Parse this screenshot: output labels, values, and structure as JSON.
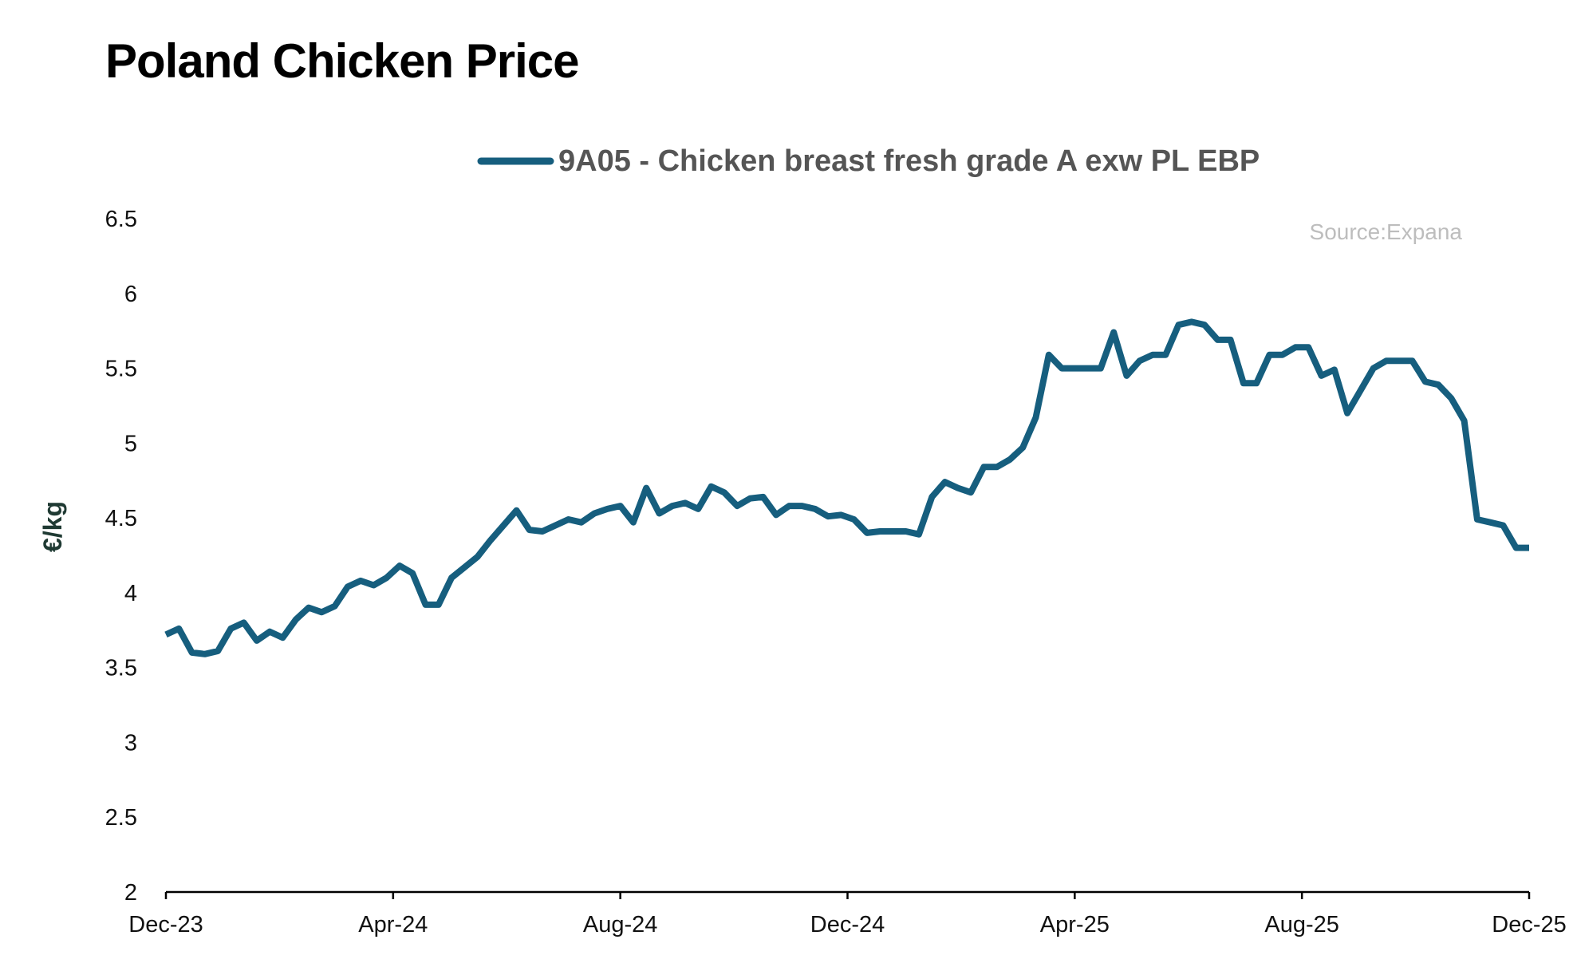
{
  "chart_data": {
    "type": "line",
    "title": "Poland Chicken Price",
    "source": "Source:Expana",
    "xlabel": "",
    "ylabel": "€/kg",
    "ylim": [
      2,
      6.5
    ],
    "yticks": [
      "2",
      "2.5",
      "3",
      "3.5",
      "4",
      "4.5",
      "5",
      "5.5",
      "6",
      "6.5"
    ],
    "x_ticks": [
      "Dec-23",
      "Apr-24",
      "Aug-24",
      "Dec-24",
      "Apr-25",
      "Aug-25",
      "Dec-25"
    ],
    "x_range": [
      0,
      24
    ],
    "color": "#165E7E",
    "legend_position": "top-center",
    "series": [
      {
        "name": "9A05 - Chicken breast fresh grade A exw PL EBP",
        "values": [
          3.72,
          3.76,
          3.6,
          3.59,
          3.61,
          3.76,
          3.8,
          3.68,
          3.74,
          3.7,
          3.82,
          3.9,
          3.87,
          3.91,
          4.04,
          4.08,
          4.05,
          4.1,
          4.18,
          4.13,
          3.92,
          3.92,
          4.1,
          4.17,
          4.24,
          4.35,
          4.45,
          4.55,
          4.42,
          4.41,
          4.45,
          4.49,
          4.47,
          4.53,
          4.56,
          4.58,
          4.47,
          4.7,
          4.53,
          4.58,
          4.6,
          4.56,
          4.71,
          4.67,
          4.58,
          4.63,
          4.64,
          4.52,
          4.58,
          4.58,
          4.56,
          4.51,
          4.52,
          4.49,
          4.4,
          4.41,
          4.41,
          4.41,
          4.39,
          4.64,
          4.74,
          4.7,
          4.67,
          4.84,
          4.84,
          4.89,
          4.97,
          5.17,
          5.59,
          5.5,
          5.5,
          5.5,
          5.5,
          5.74,
          5.45,
          5.55,
          5.59,
          5.59,
          5.79,
          5.81,
          5.79,
          5.69,
          5.69,
          5.4,
          5.4,
          5.59,
          5.59,
          5.64,
          5.64,
          5.45,
          5.49,
          5.2,
          5.35,
          5.5,
          5.55,
          5.55,
          5.55,
          5.41,
          5.39,
          5.3,
          5.15,
          4.49,
          4.47,
          4.45,
          4.3,
          4.3
        ]
      }
    ]
  }
}
